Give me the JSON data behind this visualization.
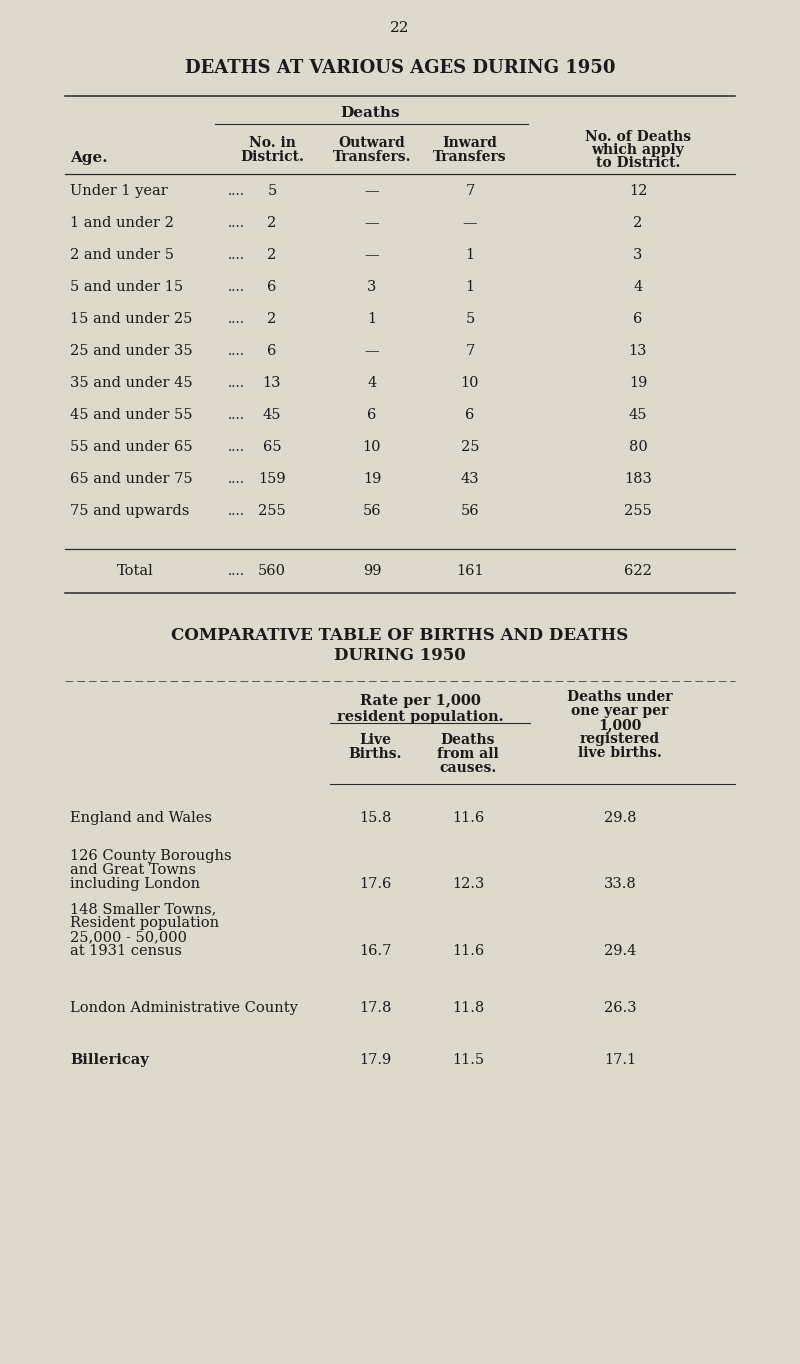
{
  "page_number": "22",
  "bg_color": "#ddd9cc",
  "text_color": "#1a1a1a",
  "title1": "DEATHS AT VARIOUS AGES DURING 1950",
  "table1_rows": [
    [
      "Under 1 year",
      "5",
      "—",
      "7",
      "12"
    ],
    [
      "1 and under 2",
      "2",
      "—",
      "—",
      "2"
    ],
    [
      "2 and under 5",
      "2",
      "—",
      "1",
      "3"
    ],
    [
      "5 and under 15",
      "6",
      "3",
      "1",
      "4"
    ],
    [
      "15 and under 25",
      "2",
      "1",
      "5",
      "6"
    ],
    [
      "25 and under 35",
      "6",
      "—",
      "7",
      "13"
    ],
    [
      "35 and under 45",
      "13",
      "4",
      "10",
      "19"
    ],
    [
      "45 and under 55",
      "45",
      "6",
      "6",
      "45"
    ],
    [
      "55 and under 65",
      "65",
      "10",
      "25",
      "80"
    ],
    [
      "65 and under 75",
      "159",
      "19",
      "43",
      "183"
    ],
    [
      "75 and upwards",
      "255",
      "56",
      "56",
      "255"
    ]
  ],
  "table1_total": [
    "Total",
    "560",
    "99",
    "161",
    "622"
  ],
  "title2_line1": "COMPARATIVE TABLE OF BIRTHS AND DEATHS",
  "title2_line2": "DURING 1950",
  "table2_rows": [
    [
      "England and Wales",
      "15.8",
      "11.6",
      "29.8"
    ],
    [
      "126 County Boroughs\nand Great Towns\nincluding London",
      "17.6",
      "12.3",
      "33.8"
    ],
    [
      "148 Smaller Towns,\nResident population\n25,000 - 50,000\nat 1931 census",
      "16.7",
      "11.6",
      "29.4"
    ],
    [
      "London Administrative County",
      "17.8",
      "11.8",
      "26.3"
    ],
    [
      "Billericay",
      "17.9",
      "11.5",
      "17.1"
    ]
  ]
}
